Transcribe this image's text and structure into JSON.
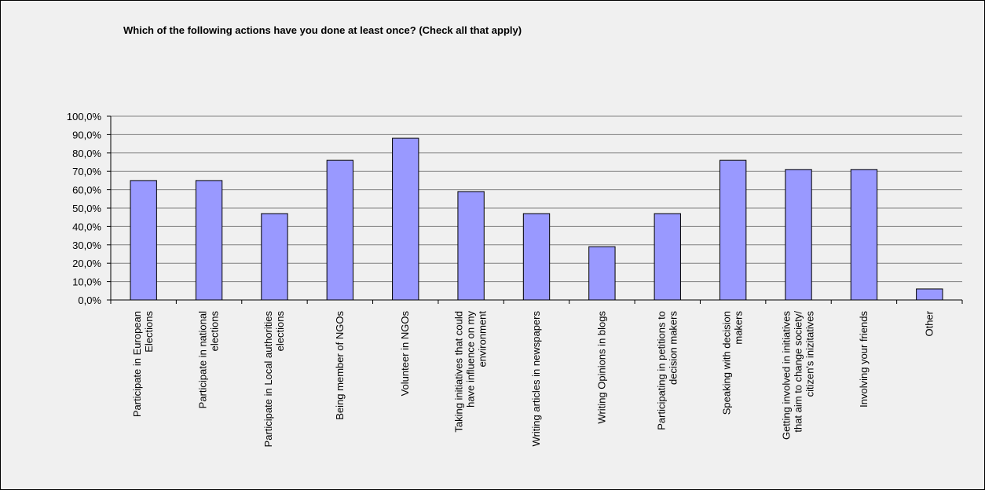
{
  "chart_data": {
    "type": "bar",
    "title": "Which of the following actions have you done at least once? (Check all that apply)",
    "xlabel": "",
    "ylabel": "",
    "ylim": [
      0,
      100
    ],
    "yticks": [
      "0,0%",
      "10,0%",
      "20,0%",
      "30,0%",
      "40,0%",
      "50,0%",
      "60,0%",
      "70,0%",
      "80,0%",
      "90,0%",
      "100,0%"
    ],
    "grid": true,
    "categories": [
      [
        "Participate in European",
        "Elections"
      ],
      [
        "Participate in national",
        "elections"
      ],
      [
        "Participate in Local authorities",
        "elections"
      ],
      [
        "Being member of NGOs"
      ],
      [
        "Volunteer in NGOs"
      ],
      [
        "Taking initiatives that could",
        "have influence on my",
        "environment"
      ],
      [
        "Writing articles in newspapers"
      ],
      [
        "Writing Opinions in blogs"
      ],
      [
        "Participating in petitions to",
        "decision makers"
      ],
      [
        "Speaking with decision",
        "makers"
      ],
      [
        "Getting involved in initiatives",
        "that aim to change society/",
        "citizen's inizitatives"
      ],
      [
        "Involving your friends"
      ],
      [
        "Other"
      ]
    ],
    "values": [
      65,
      65,
      47,
      76,
      88,
      59,
      47,
      29,
      47,
      76,
      71,
      71,
      6
    ],
    "colors": {
      "bar": "#9999ff",
      "bar_stroke": "#000000",
      "grid": "#808080",
      "axis": "#000000",
      "background": "#f0f0f0"
    }
  }
}
